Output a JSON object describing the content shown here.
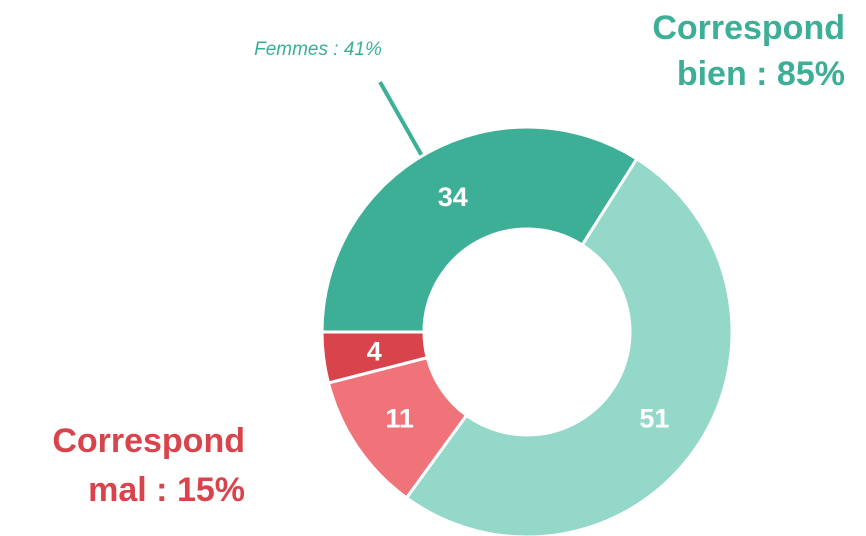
{
  "chart_data": {
    "type": "donut",
    "values": [
      34,
      51,
      11,
      4
    ],
    "colors": [
      "#3daf96",
      "#93d8c9",
      "#f07379",
      "#d9434c"
    ],
    "annotations": [
      {
        "text": "Femmes : 41%",
        "color": "#3daf96"
      },
      {
        "lines": [
          "Correspond",
          "bien : 85%"
        ],
        "color": "#3daf96"
      },
      {
        "lines": [
          "Correspond",
          "mal : 15%"
        ],
        "color": "#d9434c"
      }
    ]
  }
}
